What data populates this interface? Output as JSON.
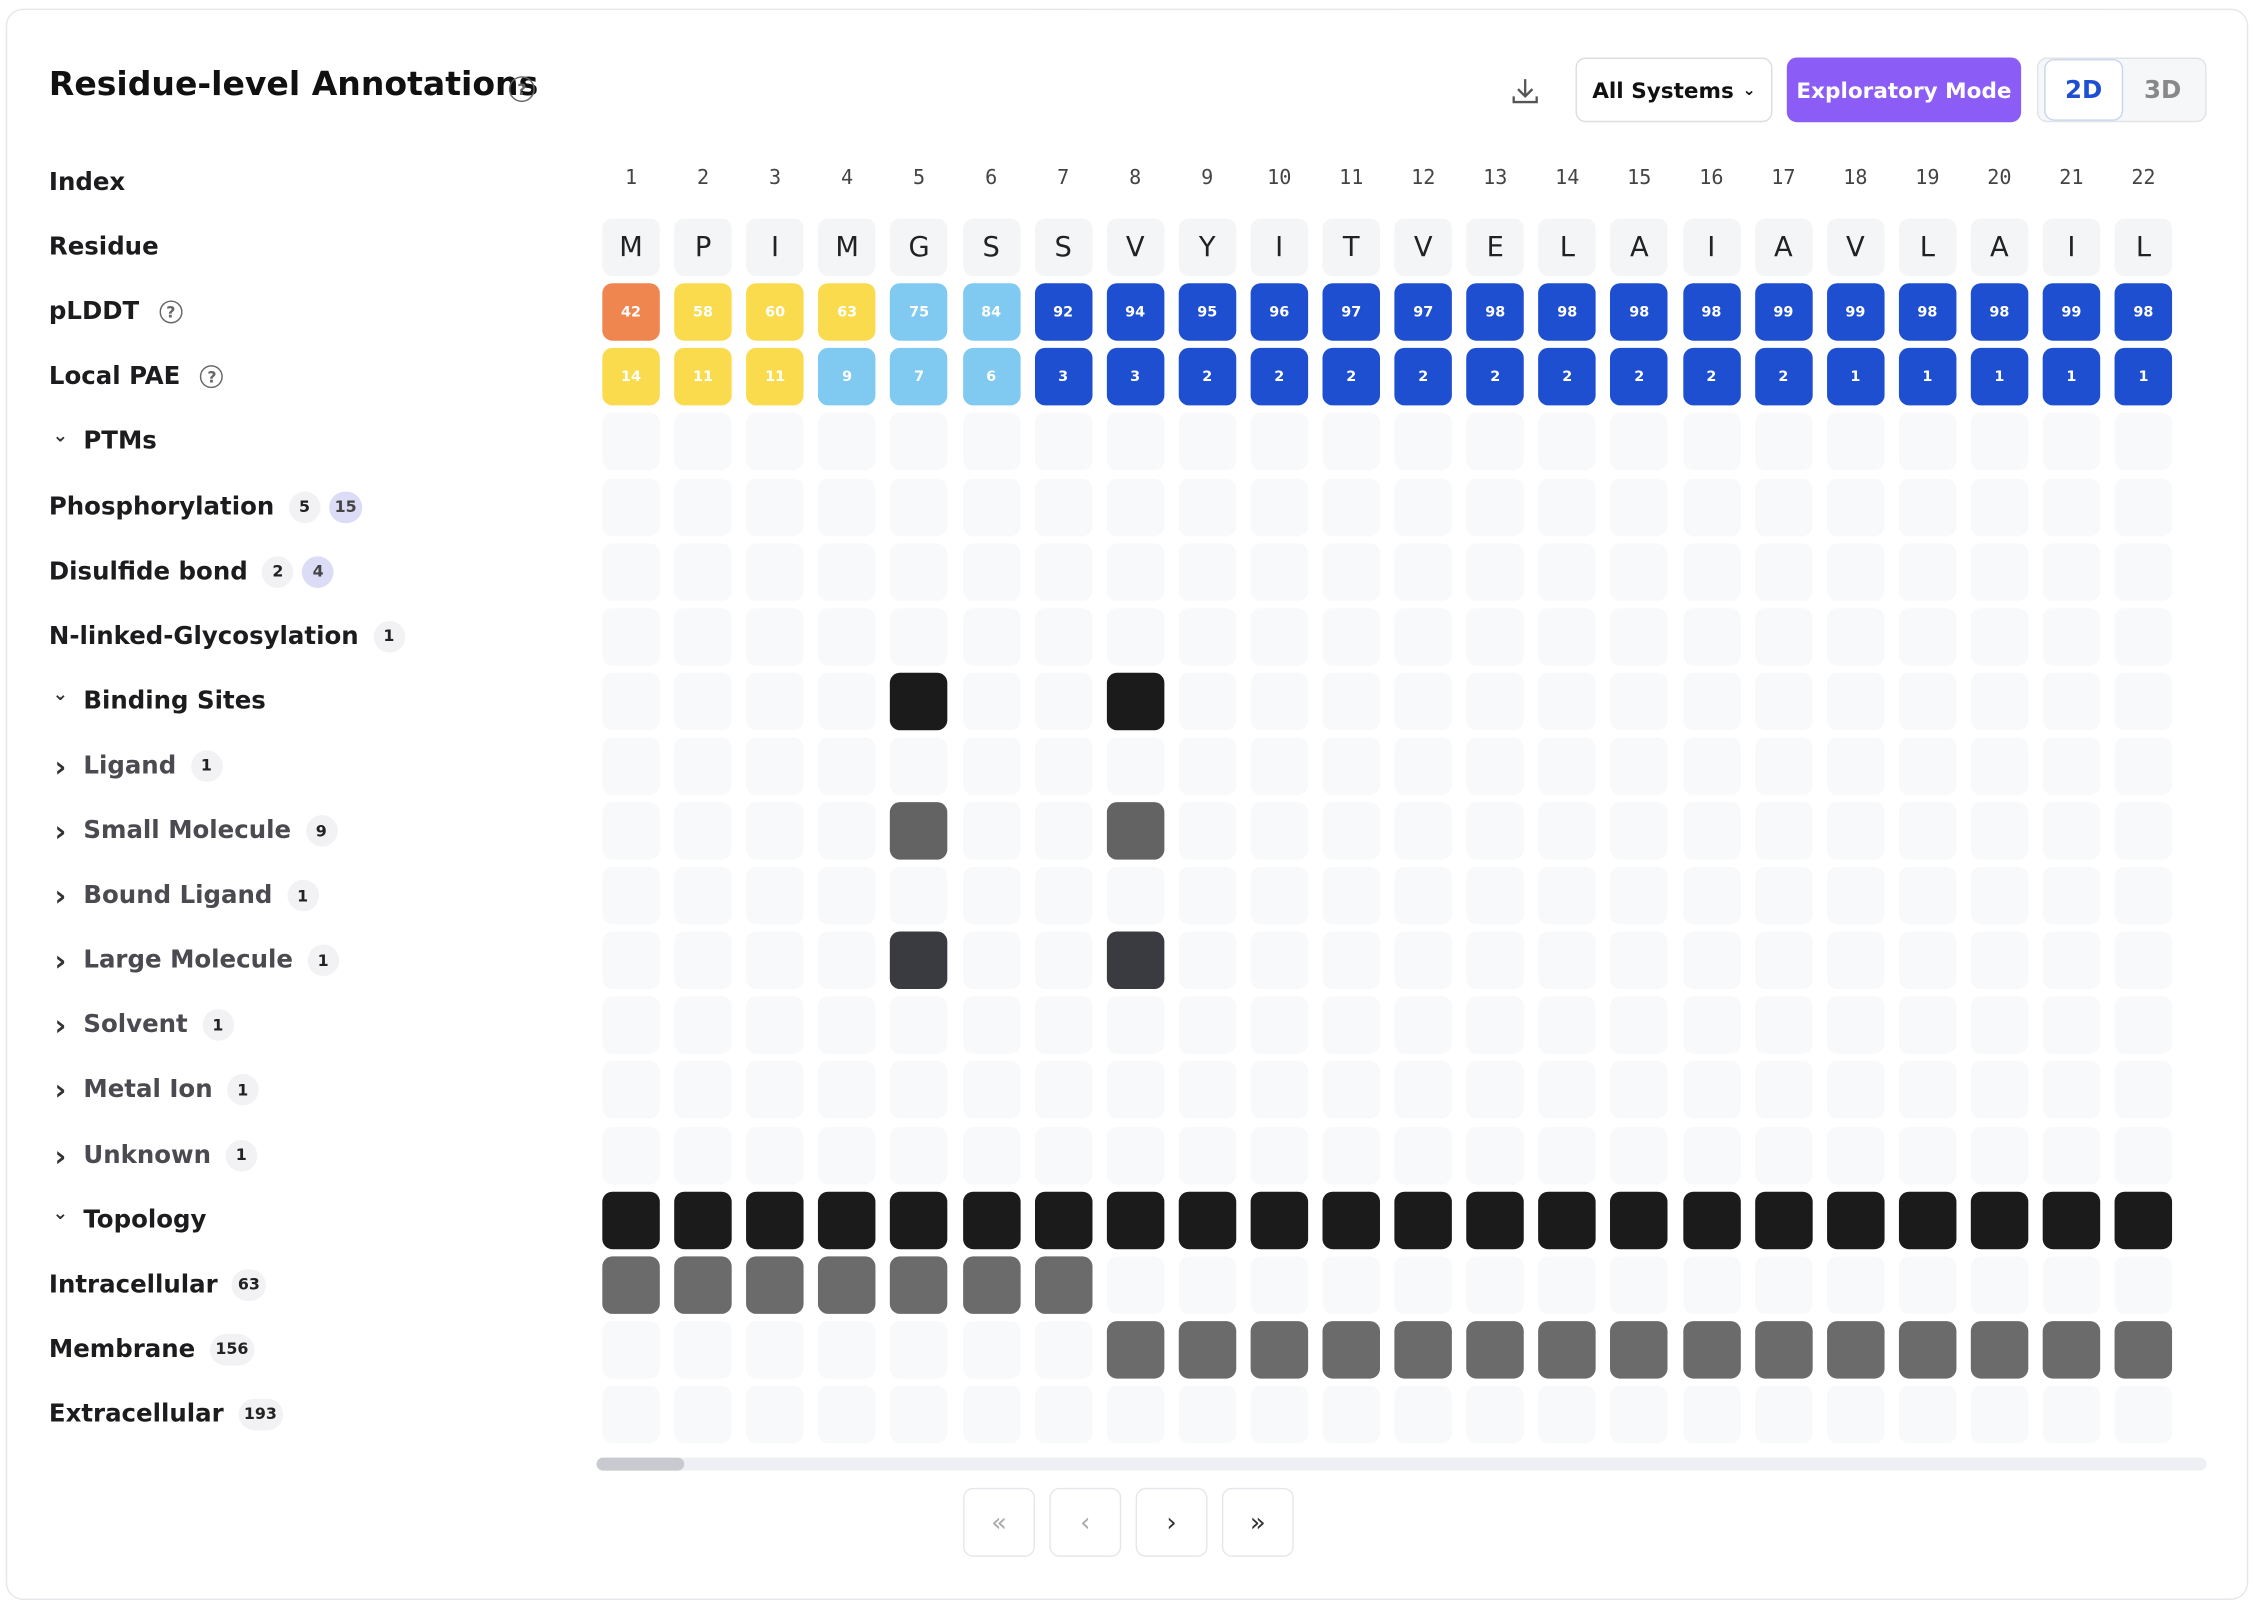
{
  "header": {
    "title": "Residue-level Annotations",
    "systems": "All Systems",
    "mode": "Exploratory Mode",
    "views": [
      "2D",
      "3D"
    ]
  },
  "track_labels": {
    "index": "Index",
    "residue": "Residue",
    "plddt": "pLDDT",
    "pae": "Local PAE"
  },
  "index": [
    1,
    2,
    3,
    4,
    5,
    6,
    7,
    8,
    9,
    10,
    11,
    12,
    13,
    14,
    15,
    16,
    17,
    18,
    19,
    20,
    21,
    22
  ],
  "residues": [
    "M",
    "P",
    "I",
    "M",
    "G",
    "S",
    "S",
    "V",
    "Y",
    "I",
    "T",
    "V",
    "E",
    "L",
    "A",
    "I",
    "A",
    "V",
    "L",
    "A",
    "I",
    "L"
  ],
  "plddt": {
    "values": [
      42,
      58,
      60,
      63,
      75,
      84,
      92,
      94,
      95,
      96,
      97,
      97,
      98,
      98,
      98,
      98,
      99,
      99,
      98,
      98,
      99,
      98
    ],
    "colors": [
      "#f0864f",
      "#fadb4e",
      "#fadb4e",
      "#fadb4e",
      "#80c9f0",
      "#80c9f0",
      "#1f4fd1",
      "#1f4fd1",
      "#1f4fd1",
      "#1f4fd1",
      "#1f4fd1",
      "#1f4fd1",
      "#1f4fd1",
      "#1f4fd1",
      "#1f4fd1",
      "#1f4fd1",
      "#1f4fd1",
      "#1f4fd1",
      "#1f4fd1",
      "#1f4fd1",
      "#1f4fd1",
      "#1f4fd1"
    ]
  },
  "pae": {
    "values": [
      14,
      11,
      11,
      9,
      7,
      6,
      3,
      3,
      2,
      2,
      2,
      2,
      2,
      2,
      2,
      2,
      2,
      1,
      1,
      1,
      1,
      1
    ],
    "colors": [
      "#fadb4e",
      "#fadb4e",
      "#fadb4e",
      "#80c9f0",
      "#80c9f0",
      "#80c9f0",
      "#1f4fd1",
      "#1f4fd1",
      "#1f4fd1",
      "#1f4fd1",
      "#1f4fd1",
      "#1f4fd1",
      "#1f4fd1",
      "#1f4fd1",
      "#1f4fd1",
      "#1f4fd1",
      "#1f4fd1",
      "#1f4fd1",
      "#1f4fd1",
      "#1f4fd1",
      "#1f4fd1",
      "#1f4fd1"
    ]
  },
  "rows": [
    {
      "label": "PTMs",
      "kind": "group"
    },
    {
      "label": "Phosphorylation",
      "kind": "row",
      "counts": [
        5,
        15
      ]
    },
    {
      "label": "Disulfide bond",
      "kind": "row",
      "counts": [
        2,
        4
      ]
    },
    {
      "label": "N-linked-Glycosylation",
      "kind": "row",
      "counts": [
        1
      ]
    },
    {
      "label": "Binding Sites",
      "kind": "group",
      "filled": [
        5,
        8
      ],
      "color": "#1b1b1b"
    },
    {
      "label": "Ligand",
      "kind": "child",
      "counts": [
        1
      ]
    },
    {
      "label": "Small Molecule",
      "kind": "child",
      "counts": [
        9
      ],
      "filled": [
        5,
        8
      ],
      "color": "#636363"
    },
    {
      "label": "Bound Ligand",
      "kind": "child",
      "counts": [
        1
      ]
    },
    {
      "label": "Large Molecule",
      "kind": "child",
      "counts": [
        1
      ],
      "filled": [
        5,
        8
      ],
      "color": "#3a3b40"
    },
    {
      "label": "Solvent",
      "kind": "child",
      "counts": [
        1
      ]
    },
    {
      "label": "Metal Ion",
      "kind": "child",
      "counts": [
        1
      ]
    },
    {
      "label": "Unknown",
      "kind": "child",
      "counts": [
        1
      ]
    },
    {
      "label": "Topology",
      "kind": "group",
      "filled": [
        1,
        2,
        3,
        4,
        5,
        6,
        7,
        8,
        9,
        10,
        11,
        12,
        13,
        14,
        15,
        16,
        17,
        18,
        19,
        20,
        21,
        22
      ],
      "color": "#1b1b1b"
    },
    {
      "label": "Intracellular",
      "kind": "row",
      "counts": [
        63
      ],
      "filled": [
        1,
        2,
        3,
        4,
        5,
        6,
        7
      ],
      "color": "#6b6b6b"
    },
    {
      "label": "Membrane",
      "kind": "row",
      "counts": [
        156
      ],
      "filled": [
        8,
        9,
        10,
        11,
        12,
        13,
        14,
        15,
        16,
        17,
        18,
        19,
        20,
        21,
        22
      ],
      "color": "#6b6b6b"
    },
    {
      "label": "Extracellular",
      "kind": "row",
      "counts": [
        193
      ]
    }
  ]
}
